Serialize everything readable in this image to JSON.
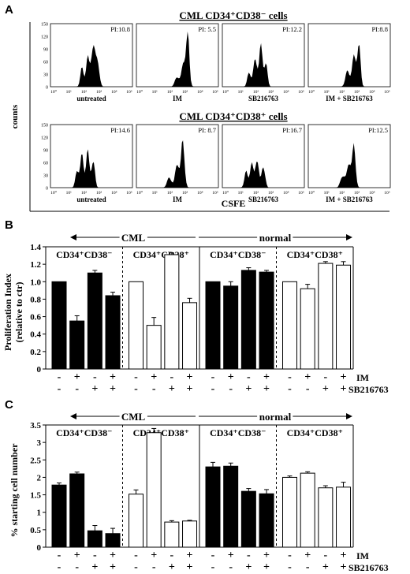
{
  "panels": {
    "A": {
      "label": "A",
      "row1_title": "CML CD34⁺CD38⁻ cells",
      "row2_title": "CML CD34⁺CD38⁺ cells",
      "ylabel": "counts",
      "xlabel": "CSFE",
      "row1_yticks": [
        "150",
        "120",
        "90",
        "60",
        "30",
        "0"
      ],
      "row2_yticks": [
        "150",
        "120",
        "90",
        "60",
        "30",
        "0"
      ],
      "xticks": [
        "10⁰",
        "10¹",
        "10²",
        "10³",
        "10⁴",
        "10⁵"
      ],
      "row1": [
        {
          "pi": "PI:10.8",
          "label": "untreated"
        },
        {
          "pi": "PI: 5.5",
          "label": "IM"
        },
        {
          "pi": "PI:12.2",
          "label": "SB216763"
        },
        {
          "pi": "PI:8.8",
          "label": "IM + SB216763"
        }
      ],
      "row2": [
        {
          "pi": "PI:14.6",
          "label": "untreated"
        },
        {
          "pi": "PI: 8.7",
          "label": "IM"
        },
        {
          "pi": "PI:16.7",
          "label": "SB216763"
        },
        {
          "pi": "PI:12.5",
          "label": "IM + SB216763"
        }
      ]
    },
    "B": {
      "label": "B",
      "group_cml": "CML",
      "group_normal": "normal",
      "sub_neg": "CD34⁺CD38⁻",
      "sub_pos": "CD34⁺CD38⁺",
      "ylabel_line1": "Proliferation Index",
      "ylabel_line2": "(relative to ctr)",
      "im_label": "IM",
      "sb_label": "SB216763"
    },
    "C": {
      "label": "C",
      "group_cml": "CML",
      "group_normal": "normal",
      "sub_neg": "CD34⁺CD38⁻",
      "sub_pos": "CD34⁺CD38⁺",
      "ylabel": "% starting cell number",
      "im_label": "IM",
      "sb_label": "SB216763"
    }
  },
  "chart_data": [
    {
      "type": "bar",
      "panel": "B",
      "ylabel": "Proliferation Index (relative to ctr)",
      "ylim": [
        0,
        1.4
      ],
      "yticks": [
        "0",
        "0.2",
        "0.4",
        "0.6",
        "0.8",
        "1.0",
        "1.2",
        "1.4"
      ],
      "treatment_im": [
        "-",
        "+",
        "-",
        "+"
      ],
      "treatment_sb": [
        "-",
        "-",
        "+",
        "+"
      ],
      "groups": [
        {
          "cell": "CML CD34⁺CD38⁻",
          "fill": "black",
          "values": [
            1.0,
            0.55,
            1.1,
            0.84
          ],
          "errors": [
            0,
            0.06,
            0.03,
            0.04
          ]
        },
        {
          "cell": "CML CD34⁺CD38⁺",
          "fill": "white",
          "values": [
            1.0,
            0.5,
            1.31,
            0.76
          ],
          "errors": [
            0,
            0.09,
            0.02,
            0.05
          ]
        },
        {
          "cell": "normal CD34⁺CD38⁻",
          "fill": "black",
          "values": [
            1.0,
            0.95,
            1.13,
            1.11
          ],
          "errors": [
            0,
            0.05,
            0.03,
            0.02
          ]
        },
        {
          "cell": "normal CD34⁺CD38⁺",
          "fill": "white",
          "values": [
            1.0,
            0.92,
            1.21,
            1.19
          ],
          "errors": [
            0,
            0.05,
            0.02,
            0.04
          ]
        }
      ]
    },
    {
      "type": "bar",
      "panel": "C",
      "ylabel": "% starting cell number",
      "ylim": [
        0,
        3.5
      ],
      "yticks": [
        "0",
        "0.5",
        "1",
        "1.5",
        "2",
        "2.5",
        "3",
        "3.5"
      ],
      "treatment_im": [
        "-",
        "+",
        "-",
        "+"
      ],
      "treatment_sb": [
        "-",
        "-",
        "+",
        "+"
      ],
      "groups": [
        {
          "cell": "CML CD34⁺CD38⁻",
          "fill": "black",
          "values": [
            1.78,
            2.1,
            0.47,
            0.39
          ],
          "errors": [
            0.06,
            0.05,
            0.15,
            0.15
          ]
        },
        {
          "cell": "CML CD34⁺CD38⁺",
          "fill": "white",
          "values": [
            1.52,
            3.28,
            0.72,
            0.75
          ],
          "errors": [
            0.12,
            0.12,
            0.04,
            0.02
          ]
        },
        {
          "cell": "normal CD34⁺CD38⁻",
          "fill": "black",
          "values": [
            2.3,
            2.32,
            1.6,
            1.53
          ],
          "errors": [
            0.13,
            0.09,
            0.08,
            0.12
          ]
        },
        {
          "cell": "normal CD34⁺CD38⁺",
          "fill": "white",
          "values": [
            2.0,
            2.12,
            1.7,
            1.72
          ],
          "errors": [
            0.04,
            0.04,
            0.06,
            0.14
          ]
        }
      ]
    }
  ]
}
